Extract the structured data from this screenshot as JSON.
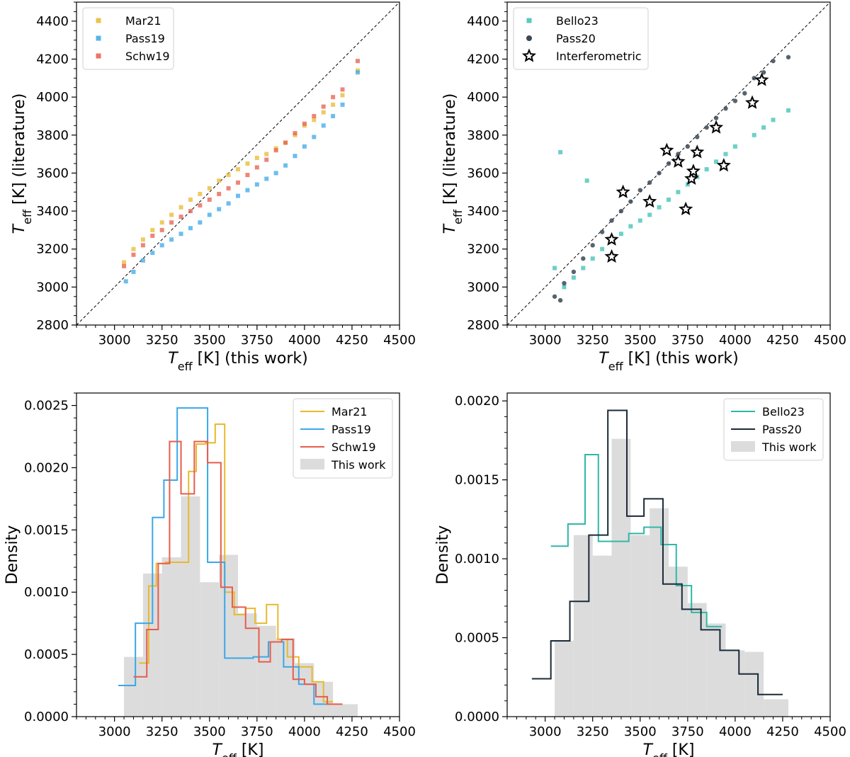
{
  "chart_data": [
    {
      "id": "a",
      "type": "scatter",
      "xlabel": {
        "sym": "T",
        "sub": "eff",
        "rest": " [K] (this work)"
      },
      "ylabel": {
        "sym": "T",
        "sub": "eff",
        "rest": " [K] (literature)"
      },
      "xlim": [
        2800,
        4500
      ],
      "ylim": [
        2800,
        4500
      ],
      "xticks": [
        3000,
        3250,
        3500,
        3750,
        4000,
        4250,
        4500
      ],
      "yticks": [
        2800,
        3000,
        3200,
        3400,
        3600,
        3800,
        4000,
        4200,
        4400
      ],
      "identity_line": true,
      "legend_position": "upper-left",
      "series": [
        {
          "name": "Mar21",
          "color": "#e8b92c",
          "marker": "square",
          "x": [
            3050,
            3100,
            3150,
            3200,
            3250,
            3300,
            3350,
            3400,
            3450,
            3500,
            3550,
            3600,
            3650,
            3700,
            3750,
            3800,
            3850,
            3900,
            3950,
            4000,
            4050,
            4100,
            4150,
            4200,
            4280
          ],
          "y": [
            3130,
            3200,
            3250,
            3300,
            3340,
            3380,
            3420,
            3460,
            3490,
            3520,
            3560,
            3590,
            3620,
            3650,
            3680,
            3700,
            3730,
            3760,
            3800,
            3850,
            3880,
            3920,
            3960,
            4010,
            4140
          ]
        },
        {
          "name": "Pass19",
          "color": "#3aa8e8",
          "marker": "square",
          "x": [
            3060,
            3100,
            3150,
            3200,
            3250,
            3300,
            3350,
            3400,
            3450,
            3500,
            3550,
            3600,
            3650,
            3700,
            3750,
            3800,
            3850,
            3900,
            3950,
            4000,
            4050,
            4100,
            4150,
            4200,
            4280
          ],
          "y": [
            3030,
            3080,
            3140,
            3180,
            3220,
            3250,
            3280,
            3310,
            3340,
            3380,
            3410,
            3440,
            3480,
            3510,
            3540,
            3570,
            3600,
            3640,
            3690,
            3740,
            3790,
            3850,
            3900,
            3960,
            4130
          ]
        },
        {
          "name": "Schw19",
          "color": "#e85c4c",
          "marker": "square",
          "x": [
            3050,
            3100,
            3150,
            3200,
            3250,
            3300,
            3350,
            3400,
            3450,
            3500,
            3550,
            3600,
            3650,
            3700,
            3750,
            3800,
            3850,
            3900,
            3950,
            4000,
            4050,
            4100,
            4150,
            4200,
            4280
          ],
          "y": [
            3110,
            3170,
            3220,
            3270,
            3300,
            3340,
            3370,
            3400,
            3430,
            3460,
            3490,
            3520,
            3550,
            3590,
            3630,
            3670,
            3720,
            3760,
            3810,
            3860,
            3900,
            3950,
            4000,
            4040,
            4190
          ]
        }
      ]
    },
    {
      "id": "b",
      "type": "scatter",
      "xlabel": {
        "sym": "T",
        "sub": "eff",
        "rest": " [K] (this work)"
      },
      "ylabel": {
        "sym": "T",
        "sub": "eff",
        "rest": " [K] (literature)"
      },
      "xlim": [
        2800,
        4500
      ],
      "ylim": [
        2800,
        4500
      ],
      "xticks": [
        3000,
        3250,
        3500,
        3750,
        4000,
        4250,
        4500
      ],
      "yticks": [
        2800,
        3000,
        3200,
        3400,
        3600,
        3800,
        4000,
        4200,
        4400
      ],
      "identity_line": true,
      "legend_position": "upper-left",
      "series": [
        {
          "name": "Bello23",
          "color": "#3cc0b4",
          "marker": "square",
          "x": [
            3050,
            3080,
            3100,
            3150,
            3200,
            3220,
            3250,
            3300,
            3350,
            3400,
            3450,
            3500,
            3550,
            3600,
            3650,
            3700,
            3750,
            3800,
            3850,
            3900,
            3950,
            4000,
            4100,
            4150,
            4200,
            4280
          ],
          "y": [
            3100,
            3710,
            3000,
            3050,
            3100,
            3560,
            3150,
            3200,
            3250,
            3280,
            3320,
            3350,
            3380,
            3420,
            3460,
            3500,
            3540,
            3580,
            3620,
            3660,
            3700,
            3740,
            3800,
            3840,
            3880,
            3930
          ]
        },
        {
          "name": "Pass20",
          "color": "#3b4856",
          "marker": "circle",
          "x": [
            3050,
            3080,
            3100,
            3150,
            3200,
            3250,
            3300,
            3350,
            3400,
            3450,
            3500,
            3550,
            3600,
            3650,
            3700,
            3750,
            3800,
            3850,
            3900,
            3950,
            4000,
            4050,
            4100,
            4150,
            4200,
            4280
          ],
          "y": [
            2950,
            2930,
            3020,
            3080,
            3150,
            3220,
            3290,
            3350,
            3400,
            3450,
            3510,
            3550,
            3600,
            3650,
            3700,
            3740,
            3790,
            3840,
            3890,
            3940,
            3980,
            4020,
            4100,
            4130,
            4190,
            4210
          ]
        },
        {
          "name": "Interferometric",
          "color": "#000000",
          "marker": "star",
          "x": [
            3350,
            3350,
            3410,
            3550,
            3640,
            3700,
            3740,
            3770,
            3780,
            3800,
            3900,
            3940,
            4090,
            4140
          ],
          "y": [
            3160,
            3250,
            3500,
            3450,
            3720,
            3660,
            3410,
            3570,
            3610,
            3710,
            3840,
            3640,
            3970,
            4090
          ]
        }
      ]
    },
    {
      "id": "c",
      "type": "histogram",
      "xlabel": {
        "sym": "T",
        "sub": "eff",
        "rest": " [K]"
      },
      "ylabel": "Density",
      "xlim": [
        2800,
        4500
      ],
      "ylim": [
        0,
        0.0026
      ],
      "xticks": [
        3000,
        3250,
        3500,
        3750,
        4000,
        4250,
        4500
      ],
      "yticks": [
        0.0,
        0.0005,
        0.001,
        0.0015,
        0.002,
        0.0025
      ],
      "ytick_labels": [
        "0.0000",
        "0.0005",
        "0.0010",
        "0.0015",
        "0.0020",
        "0.0025"
      ],
      "legend_position": "upper-right",
      "background": {
        "name": "This work",
        "color": "#dcdcdc",
        "edges": [
          3050,
          3150,
          3250,
          3350,
          3450,
          3550,
          3650,
          3750,
          3850,
          3950,
          4050,
          4150,
          4280
        ],
        "values": [
          0.00048,
          0.00115,
          0.00128,
          0.00177,
          0.00108,
          0.0013,
          0.00083,
          0.00073,
          0.00063,
          0.00043,
          0.00028,
          0.0001
        ]
      },
      "series": [
        {
          "name": "Mar21",
          "color": "#e8b92c",
          "edges": [
            3130,
            3180,
            3220,
            3270,
            3330,
            3390,
            3430,
            3480,
            3530,
            3580,
            3630,
            3690,
            3740,
            3800,
            3860,
            3910,
            3970,
            4040,
            4100,
            4150
          ],
          "values": [
            0.00043,
            0.00105,
            0.00123,
            0.00124,
            0.00124,
            0.00197,
            0.00219,
            0.0022,
            0.00235,
            0.001,
            0.00082,
            0.00087,
            0.00075,
            0.0009,
            0.00062,
            0.00048,
            0.0004,
            0.00028,
            0.00012
          ]
        },
        {
          "name": "Pass19",
          "color": "#3aa8e8",
          "edges": [
            3020,
            3110,
            3200,
            3260,
            3330,
            3410,
            3490,
            3580,
            3650,
            3730,
            3810,
            3890,
            3970,
            4050,
            4130
          ],
          "values": [
            0.00025,
            0.00075,
            0.0016,
            0.0019,
            0.00248,
            0.00248,
            0.00124,
            0.00047,
            0.00047,
            0.00048,
            0.0006,
            0.0004,
            0.00026,
            0.0001
          ]
        },
        {
          "name": "Schw19",
          "color": "#e85c4c",
          "edges": [
            3100,
            3170,
            3230,
            3290,
            3350,
            3420,
            3490,
            3560,
            3620,
            3690,
            3760,
            3820,
            3880,
            3940,
            4000,
            4060,
            4120,
            4200
          ],
          "values": [
            0.00032,
            0.0007,
            0.00123,
            0.00221,
            0.00179,
            0.00221,
            0.00204,
            0.00104,
            0.00088,
            0.00071,
            0.00044,
            0.0006,
            0.00062,
            0.0003,
            0.00026,
            0.00016,
            0.0001
          ]
        }
      ]
    },
    {
      "id": "d",
      "type": "histogram",
      "xlabel": {
        "sym": "T",
        "sub": "eff",
        "rest": " [K]"
      },
      "ylabel": "Density",
      "xlim": [
        2800,
        4500
      ],
      "ylim": [
        0,
        0.00205
      ],
      "xticks": [
        3000,
        3250,
        3500,
        3750,
        4000,
        4250,
        4500
      ],
      "yticks": [
        0.0,
        0.0005,
        0.001,
        0.0015,
        0.002
      ],
      "ytick_labels": [
        "0.0000",
        "0.0005",
        "0.0010",
        "0.0015",
        "0.0020"
      ],
      "legend_position": "upper-right",
      "background": {
        "name": "This work",
        "color": "#dcdcdc",
        "edges": [
          3050,
          3150,
          3250,
          3350,
          3450,
          3550,
          3650,
          3750,
          3850,
          3950,
          4050,
          4150,
          4280
        ],
        "values": [
          0.00048,
          0.00115,
          0.00102,
          0.00176,
          0.00115,
          0.00132,
          0.00095,
          0.00072,
          0.00059,
          0.00042,
          0.00041,
          0.00011
        ]
      },
      "series": [
        {
          "name": "Bello23",
          "color": "#2fb7a8",
          "edges": [
            3030,
            3120,
            3210,
            3280,
            3360,
            3440,
            3520,
            3610,
            3690,
            3770,
            3850,
            3930
          ],
          "values": [
            0.00108,
            0.00122,
            0.00166,
            0.00111,
            0.00111,
            0.00116,
            0.0012,
            0.00109,
            0.00083,
            0.00066,
            0.00057
          ]
        },
        {
          "name": "Pass20",
          "color": "#1b2a38",
          "edges": [
            2930,
            3030,
            3130,
            3230,
            3330,
            3430,
            3520,
            3620,
            3720,
            3820,
            3920,
            4020,
            4120,
            4250
          ],
          "values": [
            0.00024,
            0.00048,
            0.00073,
            0.00115,
            0.00194,
            0.00127,
            0.00138,
            0.00084,
            0.00068,
            0.00055,
            0.00042,
            0.00027,
            0.00014
          ]
        }
      ]
    }
  ]
}
